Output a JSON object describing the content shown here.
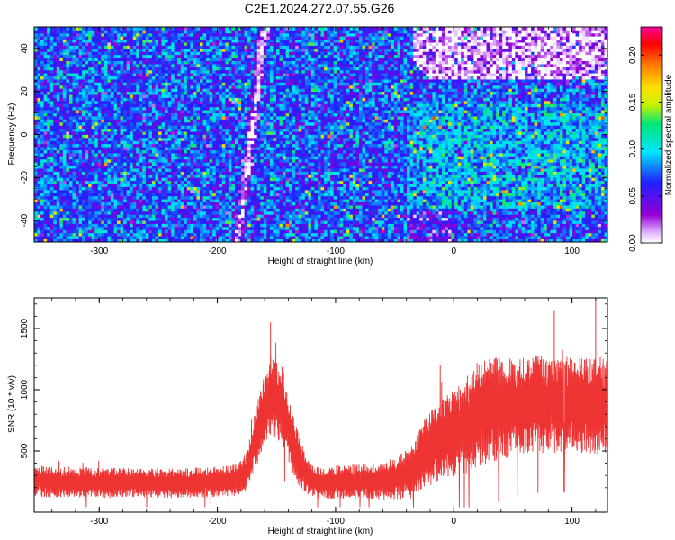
{
  "title": "C2E1.2024.272.07.55.G26",
  "chart_data": [
    {
      "type": "heatmap",
      "xlabel": "Height of straight line (km)",
      "ylabel": "Frequency (Hz)",
      "xlim": [
        -355,
        130
      ],
      "ylim": [
        -50,
        50
      ],
      "xticks": [
        -300,
        -200,
        -100,
        0,
        100
      ],
      "yticks": [
        -40,
        -20,
        0,
        20,
        40
      ],
      "colorbar": {
        "label": "Normalized spectral amplitude",
        "range": [
          0,
          0.23
        ],
        "ticks": [
          0.0,
          0.05,
          0.1,
          0.15,
          0.2
        ],
        "colormap": [
          "#ffffff",
          "#e0b0ff",
          "#9400d3",
          "#2020ff",
          "#00e5ff",
          "#00e676",
          "#c8f000",
          "#ffe000",
          "#ff7f00",
          "#ff0000",
          "#ff0099"
        ]
      },
      "features": {
        "diagonal_band": {
          "x_start": -183,
          "y_start": -50,
          "x_end": -160,
          "y_end": 50
        },
        "upper_right_blank": {
          "x_from": -35,
          "y_from": 25
        },
        "enhanced_region": {
          "x_from": -40,
          "x_to": 130,
          "y_from": -35,
          "y_to": 15
        }
      }
    },
    {
      "type": "line",
      "color": "#ee3333",
      "xlabel": "Height of straight line (km)",
      "ylabel": "SNR (10 * v/v)",
      "xlim": [
        -355,
        130
      ],
      "ylim": [
        0,
        1750
      ],
      "xticks": [
        -300,
        -200,
        -100,
        0,
        100
      ],
      "yticks": [
        500,
        1000,
        1500
      ],
      "envelope": {
        "x": [
          -355,
          -300,
          -250,
          -200,
          -185,
          -175,
          -165,
          -155,
          -145,
          -135,
          -125,
          -115,
          -105,
          -90,
          -70,
          -50,
          -35,
          -25,
          -15,
          0,
          10,
          20,
          40,
          60,
          80,
          100,
          115,
          130
        ],
        "mean": [
          250,
          240,
          235,
          245,
          260,
          330,
          700,
          960,
          880,
          520,
          300,
          240,
          245,
          250,
          255,
          270,
          330,
          480,
          560,
          640,
          700,
          800,
          850,
          870,
          880,
          880,
          875,
          870
        ],
        "spread": [
          130,
          125,
          120,
          125,
          130,
          160,
          280,
          330,
          320,
          260,
          150,
          130,
          135,
          140,
          150,
          170,
          220,
          280,
          320,
          360,
          400,
          430,
          420,
          400,
          400,
          400,
          400,
          400
        ]
      },
      "peaks": [
        {
          "x": -155,
          "y": 1550
        },
        {
          "x": 85,
          "y": 1650
        },
        {
          "x": 120,
          "y": 1750
        }
      ]
    }
  ]
}
